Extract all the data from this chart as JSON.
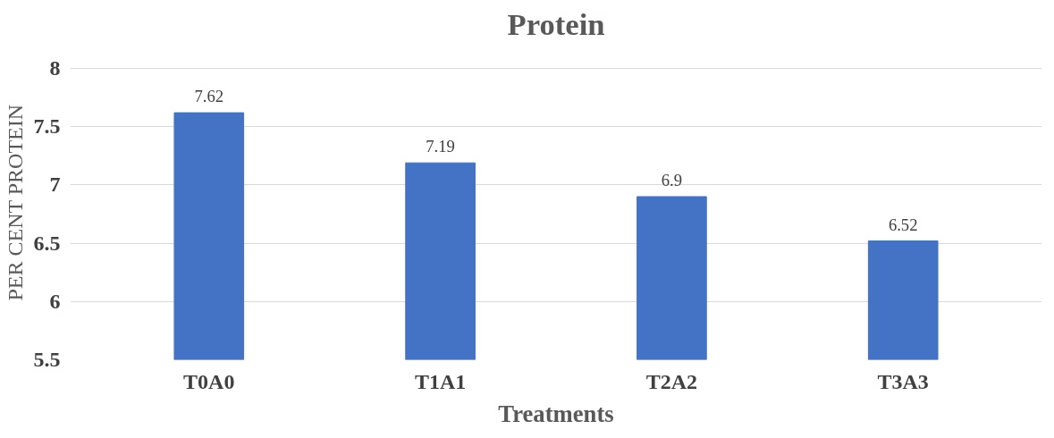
{
  "chart_data": {
    "type": "bar",
    "title": "Protein",
    "xlabel": "Treatments",
    "ylabel": "PER CENT PROTEIN",
    "categories": [
      "T0A0",
      "T1A1",
      "T2A2",
      "T3A3"
    ],
    "values": [
      7.62,
      7.19,
      6.9,
      6.52
    ],
    "color": "#4472c4",
    "ylim": [
      5.5,
      8
    ],
    "yticks": [
      5.5,
      6,
      6.5,
      7,
      7.5,
      8
    ],
    "grid": "y",
    "data_labels": true
  }
}
